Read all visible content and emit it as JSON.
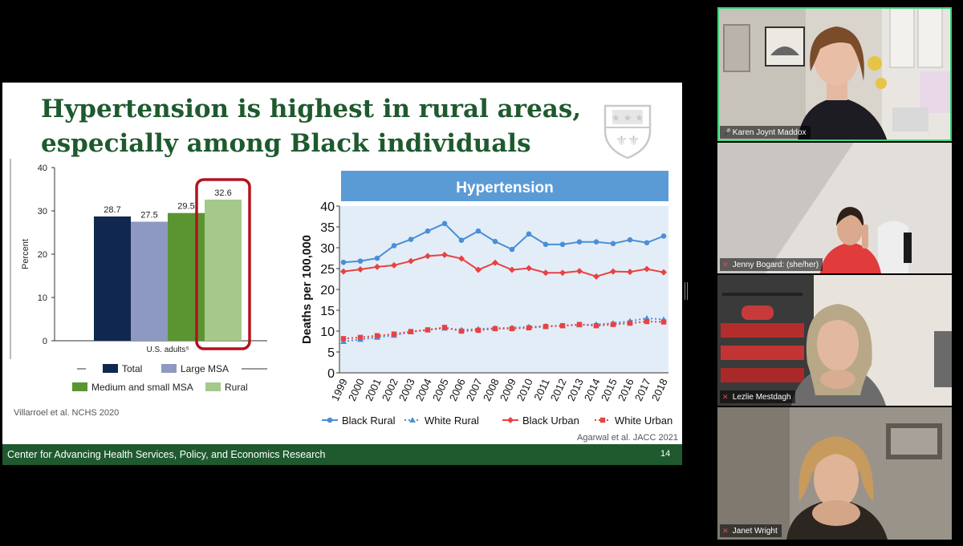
{
  "slide": {
    "title_line1": "Hypertension is highest in rural areas,",
    "title_line2": "especially among Black individuals",
    "footer_text": "Center for Advancing Health Services, Policy, and Economics Research",
    "page_number": "14",
    "citation_left": "Villarroel et al. NCHS 2020",
    "citation_right": "Agarwal et al. JACC 2021"
  },
  "participants": [
    {
      "name": "Karen Joynt Maddox",
      "status": "speaking",
      "active_speaker": true
    },
    {
      "name": "Jenny Bogard: (she/her)",
      "status": "muted"
    },
    {
      "name": "Lezlie Mestdagh",
      "status": "muted"
    },
    {
      "name": "Janet Wright",
      "status": "muted"
    }
  ],
  "colors": {
    "slide_green": "#1e5a2e",
    "active_speaker": "#3fd27a",
    "highlight_box": "#b3121f",
    "muted_icon": "#e94848"
  },
  "chart_data": [
    {
      "type": "bar",
      "ylabel": "Percent",
      "xlabel": "U.S. adults⁵",
      "ylim": [
        0,
        40
      ],
      "yticks": [
        0,
        10,
        20,
        30,
        40
      ],
      "categories": [
        "Total",
        "Large MSA",
        "Medium and small MSA",
        "Rural"
      ],
      "values": [
        28.7,
        27.5,
        29.5,
        32.6
      ],
      "value_labels": [
        "28.7",
        "27.5",
        "29.5",
        "32.6"
      ],
      "colors": [
        "#10284f",
        "#8d99c0",
        "#5a9531",
        "#a4c98a"
      ],
      "legend": [
        "Total",
        "Large MSA",
        "Medium and small MSA",
        "Rural"
      ],
      "legend_placement": "bottom",
      "highlight": "Rural"
    },
    {
      "type": "line",
      "title": "Hypertension",
      "ylabel": "Deaths per 100,000",
      "ylim": [
        0,
        40
      ],
      "yticks": [
        0,
        5,
        10,
        15,
        20,
        25,
        30,
        35,
        40
      ],
      "x": [
        1999,
        2000,
        2001,
        2002,
        2003,
        2004,
        2005,
        2006,
        2007,
        2008,
        2009,
        2010,
        2011,
        2012,
        2013,
        2014,
        2015,
        2016,
        2017,
        2018
      ],
      "x_labels": [
        "1999",
        "2000",
        "2001",
        "2002",
        "2003",
        "2004",
        "2005",
        "2006",
        "2007",
        "2008",
        "2009",
        "2010",
        "2011",
        "2012",
        "2013",
        "2014",
        "2015",
        "2016",
        "2017",
        "2018"
      ],
      "series": [
        {
          "name": "Black Rural",
          "color": "#4a8fd6",
          "style": "solid",
          "marker": "circle",
          "values": [
            26.5,
            26.8,
            27.5,
            30.5,
            32,
            34,
            35.8,
            31.8,
            34,
            31.5,
            29.6,
            33.3,
            30.8,
            30.8,
            31.4,
            31.4,
            31,
            31.9,
            31.2,
            32.8
          ]
        },
        {
          "name": "White Rural",
          "color": "#4a8fd6",
          "style": "dotted",
          "marker": "triangle",
          "values": [
            7.5,
            8,
            8.5,
            9,
            9.8,
            10.3,
            10.7,
            10.3,
            10.5,
            10.7,
            10.8,
            11,
            11.2,
            11.3,
            11.5,
            11.6,
            11.9,
            12.4,
            13.1,
            12.8
          ]
        },
        {
          "name": "Black Urban",
          "color": "#e84242",
          "style": "solid",
          "marker": "diamond",
          "values": [
            24.3,
            24.8,
            25.4,
            25.8,
            26.8,
            28,
            28.3,
            27.4,
            24.7,
            26.4,
            24.7,
            25.1,
            24,
            24,
            24.4,
            23.1,
            24.3,
            24.2,
            24.9,
            24.1
          ]
        },
        {
          "name": "White Urban",
          "color": "#e84242",
          "style": "dotted",
          "marker": "square",
          "values": [
            8.2,
            8.5,
            8.9,
            9.3,
            9.9,
            10.3,
            10.9,
            10,
            10.2,
            10.6,
            10.6,
            10.8,
            11.1,
            11.3,
            11.6,
            11.3,
            11.6,
            11.9,
            12.3,
            12.2
          ]
        }
      ],
      "legend_placement": "bottom",
      "grid": false
    }
  ]
}
